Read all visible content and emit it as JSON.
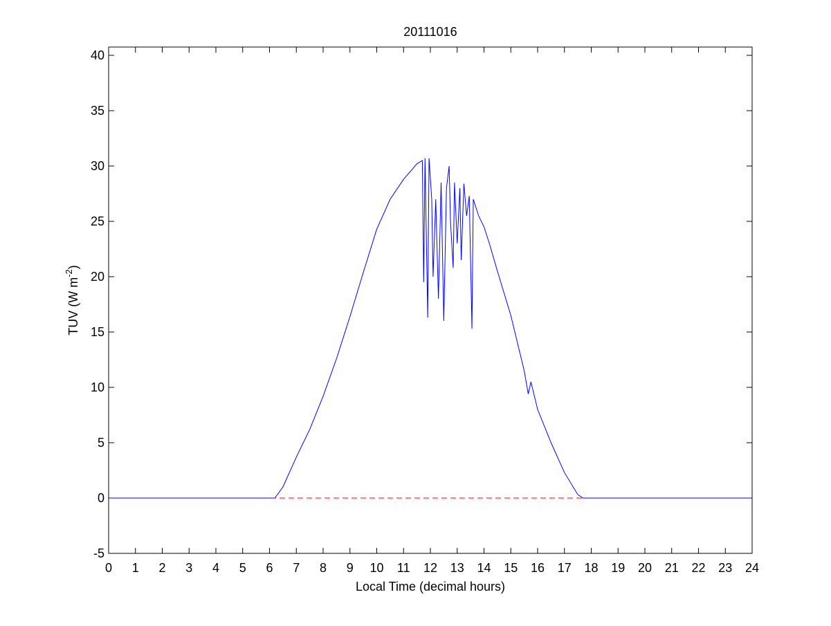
{
  "chart_data": {
    "type": "line",
    "title": "20111016",
    "x_label": "Local Time (decimal hours)",
    "y_label": {
      "text": "TUV (W m",
      "superscript": "-2",
      "suffix": ")"
    },
    "x": [
      0,
      6.2,
      6.5,
      7,
      7.5,
      8,
      8.5,
      9,
      9.5,
      10,
      10.5,
      11,
      11.5,
      11.7,
      11.75,
      11.8,
      11.9,
      11.95,
      12.05,
      12.1,
      12.2,
      12.3,
      12.4,
      12.5,
      12.6,
      12.7,
      12.75,
      12.85,
      12.9,
      13,
      13.1,
      13.15,
      13.25,
      13.35,
      13.45,
      13.55,
      13.6,
      13.8,
      14,
      14.2,
      14.5,
      15,
      15.5,
      15.65,
      15.75,
      16,
      16.5,
      17,
      17.5,
      17.7,
      24
    ],
    "series": [
      {
        "name": "TUV",
        "color": "#0000ff",
        "values": [
          0,
          0,
          1,
          3.7,
          6.2,
          9.2,
          12.6,
          16.4,
          20.4,
          24.3,
          27,
          28.8,
          30.2,
          30.5,
          19.5,
          30.7,
          16.3,
          30.7,
          27,
          20,
          27,
          18,
          28.5,
          16,
          28,
          30,
          25,
          20.8,
          28.5,
          23,
          28,
          21.5,
          28.4,
          25.5,
          27.3,
          15.3,
          27,
          25.5,
          24.5,
          23,
          20.5,
          16.5,
          11.5,
          9.4,
          10.5,
          8,
          5,
          2.3,
          0.3,
          0,
          0
        ]
      }
    ],
    "hline": {
      "value": 0,
      "color": "#ff0000",
      "style": "dashed"
    },
    "xlim": [
      0,
      24
    ],
    "xticks": [
      0,
      1,
      2,
      3,
      4,
      5,
      6,
      7,
      8,
      9,
      10,
      11,
      12,
      13,
      14,
      15,
      16,
      17,
      18,
      19,
      20,
      21,
      22,
      23,
      24
    ],
    "ylim": [
      -5,
      40.75
    ],
    "yticks": [
      -5,
      0,
      5,
      10,
      15,
      20,
      25,
      30,
      35,
      40
    ],
    "grid": false
  }
}
